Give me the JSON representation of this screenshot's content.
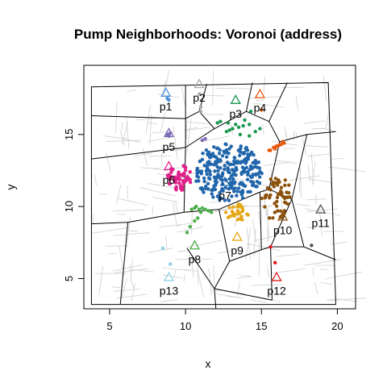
{
  "chart_data": {
    "type": "scatter",
    "title": "Pump Neighborhoods: Voronoi (address)",
    "xlabel": "x",
    "ylabel": "y",
    "xlim": [
      3.3,
      21.2
    ],
    "ylim": [
      2.9,
      19.8
    ],
    "xticks": [
      5,
      10,
      15,
      20
    ],
    "yticks": [
      5,
      10,
      15
    ],
    "grid": false,
    "legend": "none",
    "pumps": [
      {
        "label": "p1",
        "x": 8.7,
        "y": 17.9,
        "color": "#4a90d9"
      },
      {
        "label": "p2",
        "x": 10.9,
        "y": 18.5,
        "color": "#a9a9a9"
      },
      {
        "label": "p3",
        "x": 13.3,
        "y": 17.4,
        "color": "#1a9850"
      },
      {
        "label": "p4",
        "x": 14.9,
        "y": 17.8,
        "color": "#e8590c"
      },
      {
        "label": "p5",
        "x": 8.9,
        "y": 15.1,
        "color": "#7b68b6"
      },
      {
        "label": "p6",
        "x": 8.9,
        "y": 12.8,
        "color": "#e0218a"
      },
      {
        "label": "p7",
        "x": 12.6,
        "y": 11.7,
        "color": "#2166ac"
      },
      {
        "label": "p8",
        "x": 10.6,
        "y": 7.3,
        "color": "#4daf4a"
      },
      {
        "label": "p9",
        "x": 13.4,
        "y": 7.9,
        "color": "#e6a817"
      },
      {
        "label": "p10",
        "x": 16.4,
        "y": 9.3,
        "color": "#8c510a"
      },
      {
        "label": "p11",
        "x": 18.9,
        "y": 9.8,
        "color": "#555555"
      },
      {
        "label": "p12",
        "x": 16.0,
        "y": 5.1,
        "color": "#e41a1c"
      },
      {
        "label": "p13",
        "x": 8.9,
        "y": 5.1,
        "color": "#8fd3e8"
      }
    ],
    "boundary": [
      [
        3.8,
        18.3
      ],
      [
        19.4,
        18.6
      ],
      [
        19.9,
        3.2
      ],
      [
        3.8,
        3.2
      ]
    ],
    "voronoi_edges": [
      [
        [
          3.8,
          16.3
        ],
        [
          10.0,
          16.1
        ]
      ],
      [
        [
          10.0,
          18.4
        ],
        [
          10.0,
          16.1
        ]
      ],
      [
        [
          10.0,
          16.1
        ],
        [
          10.9,
          16.6
        ]
      ],
      [
        [
          11.4,
          18.5
        ],
        [
          10.9,
          16.6
        ]
      ],
      [
        [
          10.9,
          16.6
        ],
        [
          11.9,
          15.4
        ]
      ],
      [
        [
          14.4,
          18.6
        ],
        [
          14.0,
          16.6
        ]
      ],
      [
        [
          14.0,
          16.6
        ],
        [
          11.9,
          15.4
        ]
      ],
      [
        [
          14.0,
          16.6
        ],
        [
          15.5,
          15.9
        ]
      ],
      [
        [
          15.5,
          15.9
        ],
        [
          16.7,
          18.6
        ]
      ],
      [
        [
          3.8,
          13.3
        ],
        [
          10.0,
          14.1
        ]
      ],
      [
        [
          10.0,
          16.1
        ],
        [
          10.0,
          14.1
        ]
      ],
      [
        [
          10.0,
          14.1
        ],
        [
          11.9,
          15.4
        ]
      ],
      [
        [
          10.0,
          14.1
        ],
        [
          9.9,
          9.6
        ]
      ],
      [
        [
          15.5,
          15.9
        ],
        [
          16.2,
          14.5
        ]
      ],
      [
        [
          16.2,
          14.5
        ],
        [
          18.0,
          15.0
        ]
      ],
      [
        [
          18.0,
          15.0
        ],
        [
          19.9,
          15.2
        ]
      ],
      [
        [
          16.2,
          14.5
        ],
        [
          15.5,
          11.2
        ]
      ],
      [
        [
          18.0,
          15.0
        ],
        [
          17.0,
          10.5
        ]
      ],
      [
        [
          15.5,
          11.2
        ],
        [
          17.0,
          10.5
        ]
      ],
      [
        [
          3.8,
          8.8
        ],
        [
          6.2,
          8.9
        ]
      ],
      [
        [
          6.2,
          8.9
        ],
        [
          9.9,
          9.6
        ]
      ],
      [
        [
          6.2,
          8.9
        ],
        [
          5.7,
          3.2
        ]
      ],
      [
        [
          9.9,
          9.6
        ],
        [
          12.2,
          9.8
        ]
      ],
      [
        [
          12.2,
          9.8
        ],
        [
          14.9,
          11.0
        ]
      ],
      [
        [
          14.9,
          11.0
        ],
        [
          15.5,
          11.2
        ]
      ],
      [
        [
          12.2,
          9.8
        ],
        [
          12.9,
          6.2
        ]
      ],
      [
        [
          12.9,
          6.2
        ],
        [
          15.0,
          7.0
        ]
      ],
      [
        [
          15.0,
          7.0
        ],
        [
          14.9,
          11.0
        ]
      ],
      [
        [
          15.0,
          7.0
        ],
        [
          15.6,
          7.2
        ]
      ],
      [
        [
          15.6,
          7.2
        ],
        [
          17.0,
          10.5
        ]
      ],
      [
        [
          15.6,
          7.2
        ],
        [
          17.8,
          7.2
        ]
      ],
      [
        [
          17.0,
          10.5
        ],
        [
          17.8,
          7.2
        ]
      ],
      [
        [
          17.8,
          7.2
        ],
        [
          19.9,
          6.3
        ]
      ],
      [
        [
          10.1,
          7.1
        ],
        [
          11.9,
          4.3
        ]
      ],
      [
        [
          11.9,
          4.3
        ],
        [
          12.9,
          6.2
        ]
      ],
      [
        [
          11.9,
          4.3
        ],
        [
          12.0,
          2.9
        ]
      ],
      [
        [
          11.9,
          4.3
        ],
        [
          15.7,
          3.5
        ]
      ],
      [
        [
          15.6,
          7.2
        ],
        [
          15.7,
          3.5
        ]
      ]
    ],
    "case_clusters": [
      {
        "pump": "p1",
        "color": "#4a90d9",
        "points": [
          [
            8.8,
            17.5
          ],
          [
            8.9,
            17.4
          ]
        ]
      },
      {
        "pump": "p2",
        "color": "#a9a9a9",
        "points": [
          [
            11.0,
            16.6
          ],
          [
            11.0,
            16.9
          ],
          [
            10.9,
            17.8
          ]
        ]
      },
      {
        "pump": "p3",
        "color": "#1a9850",
        "points": [
          [
            12.1,
            15.8
          ],
          [
            12.7,
            15.2
          ],
          [
            12.9,
            15.3
          ],
          [
            13.1,
            15.4
          ],
          [
            13.5,
            15.5
          ],
          [
            13.8,
            15.6
          ],
          [
            14.2,
            15.7
          ],
          [
            14.3,
            16.6
          ],
          [
            13.9,
            16.0
          ],
          [
            13.6,
            15.0
          ],
          [
            12.3,
            15.9
          ],
          [
            14.6,
            15.2
          ],
          [
            14.9,
            15.4
          ],
          [
            14.2,
            14.9
          ],
          [
            12.8,
            15.8
          ],
          [
            13.3,
            15.7
          ]
        ]
      },
      {
        "pump": "p4",
        "color": "#e8590c",
        "points": [
          [
            15.0,
            16.7
          ],
          [
            15.6,
            13.9
          ],
          [
            15.9,
            14.0
          ],
          [
            16.1,
            14.2
          ],
          [
            16.3,
            14.3
          ],
          [
            16.5,
            14.4
          ],
          [
            15.8,
            14.1
          ],
          [
            16.2,
            14.3
          ],
          [
            16.0,
            14.2
          ],
          [
            15.5,
            13.9
          ],
          [
            16.4,
            14.5
          ]
        ]
      },
      {
        "pump": "p5",
        "color": "#7b68b6",
        "points": [
          [
            8.8,
            15.0
          ],
          [
            9.0,
            15.1
          ],
          [
            11.1,
            14.6
          ],
          [
            11.3,
            14.7
          ],
          [
            8.9,
            14.9
          ]
        ]
      },
      {
        "pump": "p6",
        "color": "#e0218a",
        "points": "cluster",
        "center": [
          9.6,
          12.0
        ],
        "spread": [
          0.9,
          0.9
        ],
        "n": 55
      },
      {
        "pump": "p7",
        "color": "#2166ac",
        "points": "cluster",
        "center": [
          12.8,
          12.4
        ],
        "spread": [
          2.3,
          2.0
        ],
        "n": 260
      },
      {
        "pump": "p8",
        "color": "#4daf4a",
        "points": [
          [
            10.4,
            9.8
          ],
          [
            10.6,
            9.9
          ],
          [
            10.9,
            9.8
          ],
          [
            11.0,
            9.6
          ],
          [
            11.3,
            9.8
          ],
          [
            11.5,
            9.7
          ],
          [
            11.7,
            9.6
          ],
          [
            10.8,
            9.2
          ],
          [
            10.6,
            9.0
          ],
          [
            10.3,
            8.6
          ],
          [
            10.1,
            8.2
          ],
          [
            10.7,
            10.0
          ],
          [
            11.1,
            9.9
          ]
        ]
      },
      {
        "pump": "p9",
        "color": "#e6a817",
        "points": "cluster",
        "center": [
          13.4,
          9.6
        ],
        "spread": [
          0.8,
          0.6
        ],
        "n": 30
      },
      {
        "pump": "p10",
        "color": "#8c510a",
        "points": "cluster",
        "center": [
          16.0,
          10.6
        ],
        "spread": [
          1.0,
          1.6
        ],
        "n": 55
      },
      {
        "pump": "p11",
        "color": "#555555",
        "points": [
          [
            18.3,
            7.3
          ]
        ]
      },
      {
        "pump": "p12",
        "color": "#e41a1c",
        "points": [
          [
            15.6,
            7.2
          ],
          [
            15.9,
            6.1
          ]
        ]
      },
      {
        "pump": "p13",
        "color": "#8fd3e8",
        "points": [
          [
            9.0,
            6.0
          ],
          [
            8.5,
            7.1
          ]
        ]
      }
    ]
  }
}
